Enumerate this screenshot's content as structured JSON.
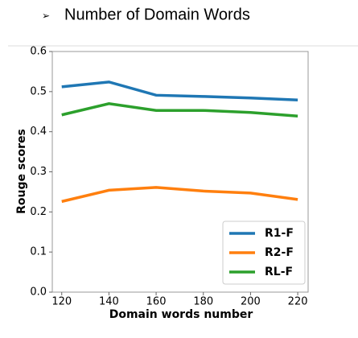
{
  "heading": {
    "bullet": "➢",
    "text": "Number of Domain Words"
  },
  "chart_data": {
    "type": "line",
    "x_label": "Domain words number",
    "y_label": "Rouge scores",
    "x": [
      120,
      140,
      160,
      180,
      200,
      220
    ],
    "series": [
      {
        "name": "R1-F",
        "color": "#1f77b4",
        "values": [
          0.512,
          0.524,
          0.491,
          0.488,
          0.484,
          0.479
        ]
      },
      {
        "name": "R2-F",
        "color": "#ff7f0e",
        "values": [
          0.226,
          0.254,
          0.261,
          0.252,
          0.247,
          0.231
        ]
      },
      {
        "name": "RL-F",
        "color": "#2ca02c",
        "values": [
          0.442,
          0.47,
          0.453,
          0.453,
          0.448,
          0.439
        ]
      }
    ],
    "xlim": [
      116,
      224.4
    ],
    "xticks": [
      120,
      140,
      160,
      180,
      200,
      220
    ],
    "ylim": [
      0,
      0.6
    ],
    "yticks": [
      {
        "value": 0,
        "label": "0.0"
      },
      0.1,
      0.2,
      0.3,
      0.4,
      0.5,
      0.6
    ],
    "legend": "lower right",
    "grid": false
  }
}
